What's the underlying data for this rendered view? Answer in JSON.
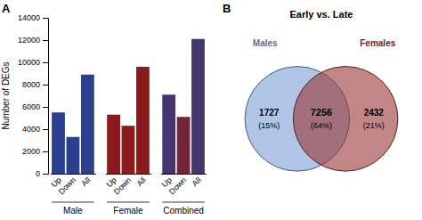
{
  "chart_data": [
    {
      "type": "bar",
      "annotations": [
        "A"
      ],
      "ylabel": "Number of DEGs",
      "categories": [
        "Up",
        "Down",
        "All"
      ],
      "series": [
        {
          "name": "Male",
          "color": "#2b3f8c",
          "values": [
            5500,
            3300,
            8900
          ]
        },
        {
          "name": "Female",
          "color": "#8b1a1a",
          "values": [
            5300,
            4300,
            9600
          ]
        },
        {
          "name": "Combined",
          "colors": [
            "#2b3f8c",
            "#8b1a1a",
            "#2b3f8c"
          ],
          "values": [
            7100,
            5100,
            12100
          ]
        }
      ],
      "ylim": [
        0,
        14000
      ],
      "yticks": [
        0,
        2000,
        4000,
        6000,
        8000,
        10000,
        12000,
        14000
      ]
    },
    {
      "type": "venn",
      "title": "Early vs. Late",
      "annotations": [
        "B"
      ],
      "series": [
        {
          "name": "Males",
          "color": "#7b9fd4"
        },
        {
          "name": "Females",
          "color": "#9b3535"
        }
      ],
      "values": [
        1727,
        7256,
        2432
      ],
      "shares": [
        15,
        64,
        21
      ],
      "share_labels": [
        "(15%)",
        "(64%)",
        "(21%)"
      ],
      "data_labels": true
    }
  ]
}
